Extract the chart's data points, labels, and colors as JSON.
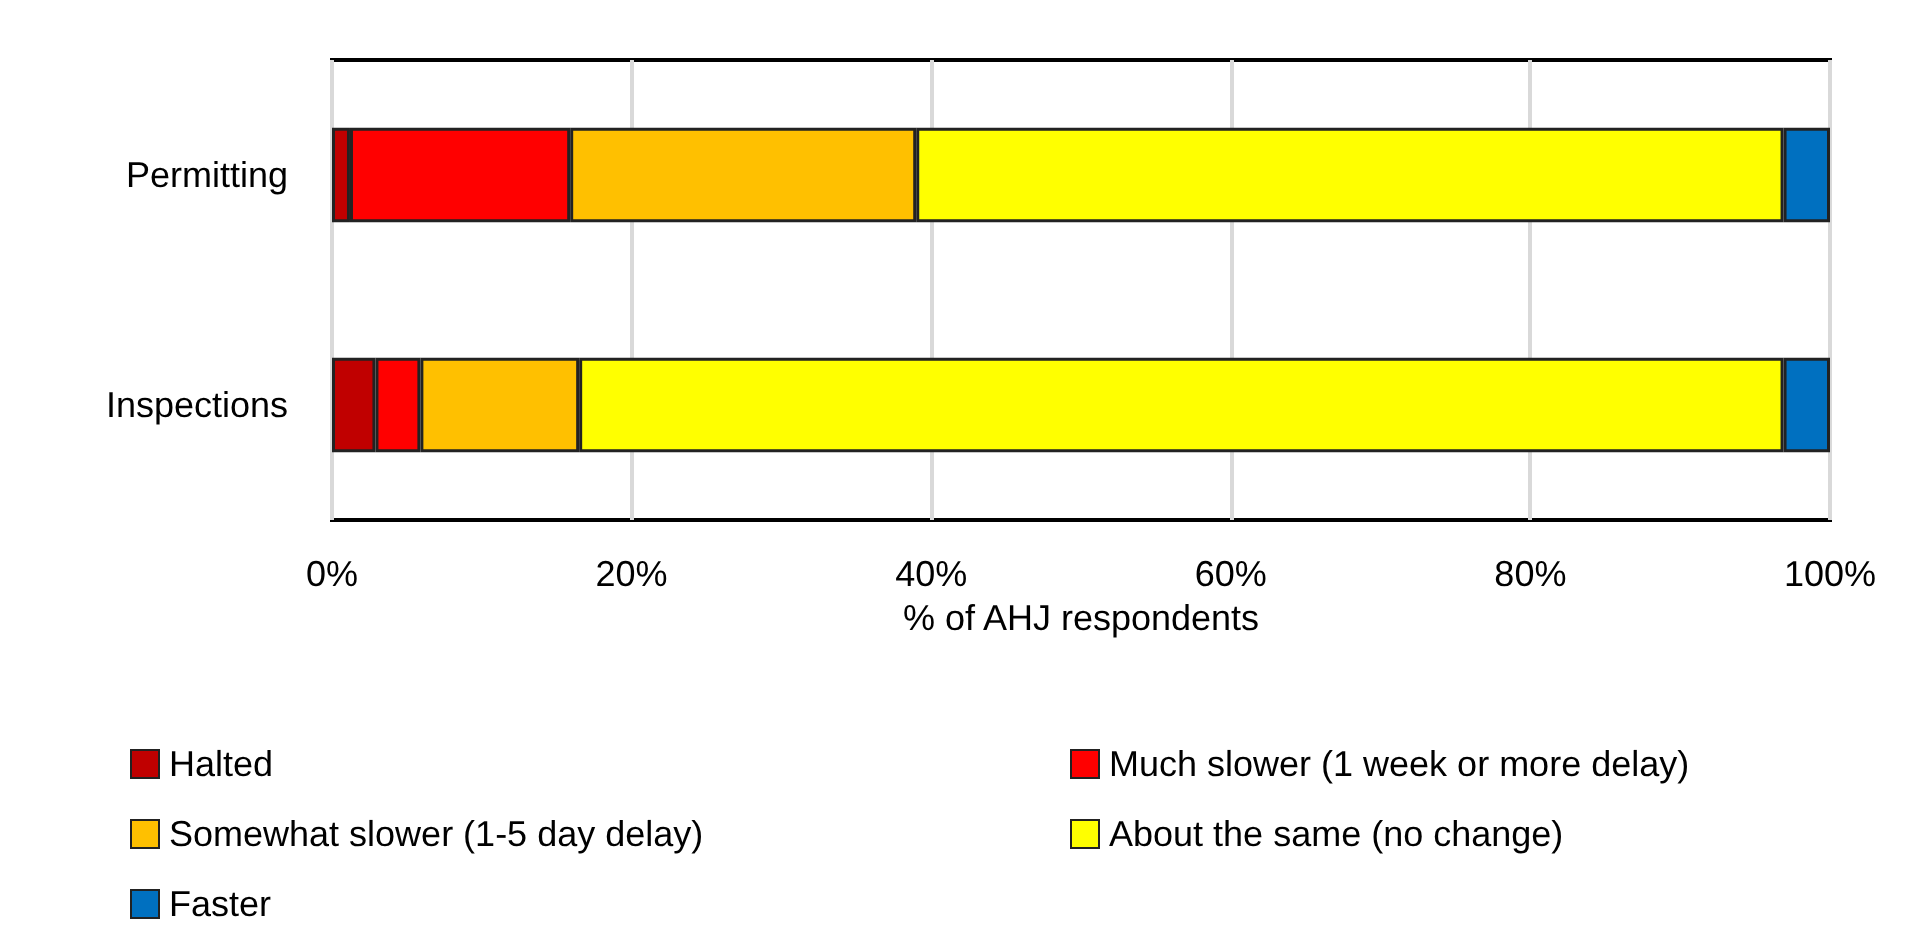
{
  "chart_data": {
    "type": "bar",
    "orientation": "horizontal",
    "stacked": true,
    "xlabel": "% of AHJ respondents",
    "categories": [
      "Permitting",
      "Inspections"
    ],
    "series": [
      {
        "name": "Halted",
        "color": "#c00000",
        "values": [
          1.2,
          2.9
        ]
      },
      {
        "name": "Much slower (1 week or more delay)",
        "color": "#ff0000",
        "values": [
          14.7,
          3.0
        ]
      },
      {
        "name": "Somewhat slower (1-5 day delay)",
        "color": "#ffc000",
        "values": [
          23.1,
          10.6
        ]
      },
      {
        "name": "About the same (no change)",
        "color": "#ffff00",
        "values": [
          57.9,
          80.4
        ]
      },
      {
        "name": "Faster",
        "color": "#0070c0",
        "values": [
          3.1,
          3.1
        ]
      }
    ],
    "xlim": [
      0,
      100
    ],
    "xticks": [
      {
        "value": 0,
        "label": "0%"
      },
      {
        "value": 20,
        "label": "20%"
      },
      {
        "value": 40,
        "label": "40%"
      },
      {
        "value": 60,
        "label": "60%"
      },
      {
        "value": 80,
        "label": "80%"
      },
      {
        "value": 100,
        "label": "100%"
      }
    ],
    "grid": "x",
    "legend": "bottom"
  }
}
